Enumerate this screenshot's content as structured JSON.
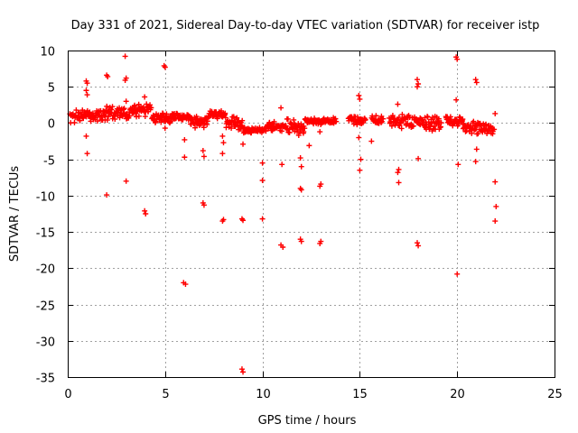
{
  "chart_data": {
    "type": "scatter",
    "title": "Day 331 of 2021, Sidereal Day-to-day VTEC variation (SDTVAR) for receiver istp",
    "xlabel": "GPS time / hours",
    "ylabel": "SDTVAR / TECUs",
    "xlim": [
      0,
      25
    ],
    "ylim": [
      -35,
      10
    ],
    "xticks": [
      "0",
      "5",
      "10",
      "15",
      "20",
      "25"
    ],
    "yticks": [
      "10",
      "5",
      "0",
      "-5",
      "-10",
      "-15",
      "-20",
      "-25",
      "-30",
      "-35"
    ],
    "grid": true,
    "marker": "+",
    "colors": {
      "points": "#ff0000"
    },
    "series": [
      {
        "name": "SDTVAR",
        "band_segments": [
          {
            "x_start": 0.1,
            "x_end": 1.8,
            "center": 1.0,
            "spread": 1.0
          },
          {
            "x_start": 1.8,
            "x_end": 3.2,
            "center": 1.5,
            "spread": 1.2
          },
          {
            "x_start": 3.2,
            "x_end": 4.3,
            "center": 1.8,
            "spread": 1.0
          },
          {
            "x_start": 4.3,
            "x_end": 5.3,
            "center": 0.7,
            "spread": 0.8
          },
          {
            "x_start": 5.3,
            "x_end": 6.3,
            "center": 0.9,
            "spread": 0.6
          },
          {
            "x_start": 6.3,
            "x_end": 7.2,
            "center": 0.3,
            "spread": 1.0
          },
          {
            "x_start": 7.2,
            "x_end": 8.1,
            "center": 1.2,
            "spread": 0.7
          },
          {
            "x_start": 8.1,
            "x_end": 9.0,
            "center": 0.0,
            "spread": 1.0
          },
          {
            "x_start": 9.0,
            "x_end": 10.2,
            "center": -1.0,
            "spread": 0.5
          },
          {
            "x_start": 10.2,
            "x_end": 11.2,
            "center": -0.5,
            "spread": 0.8
          },
          {
            "x_start": 11.2,
            "x_end": 12.2,
            "center": -0.6,
            "spread": 1.4
          },
          {
            "x_start": 12.2,
            "x_end": 13.8,
            "center": 0.3,
            "spread": 0.5
          },
          {
            "x_start": 14.4,
            "x_end": 15.3,
            "center": 0.4,
            "spread": 0.7
          },
          {
            "x_start": 15.6,
            "x_end": 16.2,
            "center": 0.4,
            "spread": 0.7
          },
          {
            "x_start": 16.5,
            "x_end": 17.5,
            "center": 0.2,
            "spread": 1.0
          },
          {
            "x_start": 17.5,
            "x_end": 19.2,
            "center": 0.0,
            "spread": 1.2
          },
          {
            "x_start": 19.4,
            "x_end": 20.3,
            "center": 0.3,
            "spread": 0.8
          },
          {
            "x_start": 20.3,
            "x_end": 21.2,
            "center": -0.6,
            "spread": 1.0
          },
          {
            "x_start": 21.2,
            "x_end": 21.9,
            "center": -0.8,
            "spread": 1.0
          }
        ],
        "points": [
          [
            0.95,
            5.8
          ],
          [
            1.0,
            5.5
          ],
          [
            0.95,
            4.5
          ],
          [
            1.0,
            3.9
          ],
          [
            0.95,
            -1.8
          ],
          [
            1.0,
            -4.2
          ],
          [
            2.0,
            6.6
          ],
          [
            2.05,
            6.4
          ],
          [
            2.0,
            -9.9
          ],
          [
            2.95,
            9.2
          ],
          [
            3.0,
            6.2
          ],
          [
            2.95,
            5.9
          ],
          [
            3.0,
            3.0
          ],
          [
            3.0,
            -8.0
          ],
          [
            3.95,
            3.6
          ],
          [
            3.95,
            -12.1
          ],
          [
            4.0,
            -12.5
          ],
          [
            4.95,
            7.9
          ],
          [
            5.0,
            7.7
          ],
          [
            5.0,
            -0.7
          ],
          [
            6.0,
            -2.3
          ],
          [
            6.0,
            -4.7
          ],
          [
            5.95,
            -22.0
          ],
          [
            6.05,
            -22.2
          ],
          [
            6.95,
            -3.8
          ],
          [
            7.0,
            -4.6
          ],
          [
            6.95,
            -11.0
          ],
          [
            7.0,
            -11.3
          ],
          [
            7.95,
            -1.8
          ],
          [
            8.0,
            -2.7
          ],
          [
            7.95,
            -4.2
          ],
          [
            8.0,
            -13.3
          ],
          [
            7.95,
            -13.5
          ],
          [
            9.0,
            -2.9
          ],
          [
            8.95,
            -13.2
          ],
          [
            9.0,
            -13.4
          ],
          [
            8.95,
            -33.9
          ],
          [
            9.0,
            -34.3
          ],
          [
            10.0,
            -5.5
          ],
          [
            10.0,
            -7.9
          ],
          [
            10.0,
            -13.2
          ],
          [
            10.95,
            2.1
          ],
          [
            11.0,
            -5.7
          ],
          [
            10.95,
            -16.8
          ],
          [
            11.05,
            -17.1
          ],
          [
            11.95,
            -4.8
          ],
          [
            12.0,
            -6.0
          ],
          [
            11.95,
            -9.0
          ],
          [
            12.0,
            -9.2
          ],
          [
            11.95,
            -16.0
          ],
          [
            12.0,
            -16.3
          ],
          [
            12.4,
            -3.1
          ],
          [
            12.95,
            -1.2
          ],
          [
            13.0,
            -8.4
          ],
          [
            12.95,
            -8.7
          ],
          [
            13.0,
            -16.3
          ],
          [
            12.95,
            -16.6
          ],
          [
            14.95,
            3.8
          ],
          [
            15.0,
            3.3
          ],
          [
            14.95,
            -2.0
          ],
          [
            15.05,
            -5.0
          ],
          [
            15.0,
            -6.5
          ],
          [
            15.6,
            -2.5
          ],
          [
            16.95,
            2.6
          ],
          [
            17.0,
            -6.4
          ],
          [
            16.95,
            -6.8
          ],
          [
            17.0,
            -8.2
          ],
          [
            17.95,
            6.0
          ],
          [
            18.0,
            5.4
          ],
          [
            17.95,
            5.0
          ],
          [
            18.0,
            -4.9
          ],
          [
            17.95,
            -16.5
          ],
          [
            18.0,
            -16.9
          ],
          [
            19.95,
            9.1
          ],
          [
            20.0,
            8.8
          ],
          [
            19.95,
            3.2
          ],
          [
            20.05,
            -5.7
          ],
          [
            20.0,
            -20.8
          ],
          [
            20.95,
            6.0
          ],
          [
            21.0,
            5.6
          ],
          [
            21.0,
            -3.6
          ],
          [
            20.95,
            -5.3
          ],
          [
            21.95,
            1.3
          ],
          [
            21.95,
            -8.1
          ],
          [
            22.0,
            -11.5
          ],
          [
            21.95,
            -13.5
          ]
        ]
      }
    ]
  }
}
